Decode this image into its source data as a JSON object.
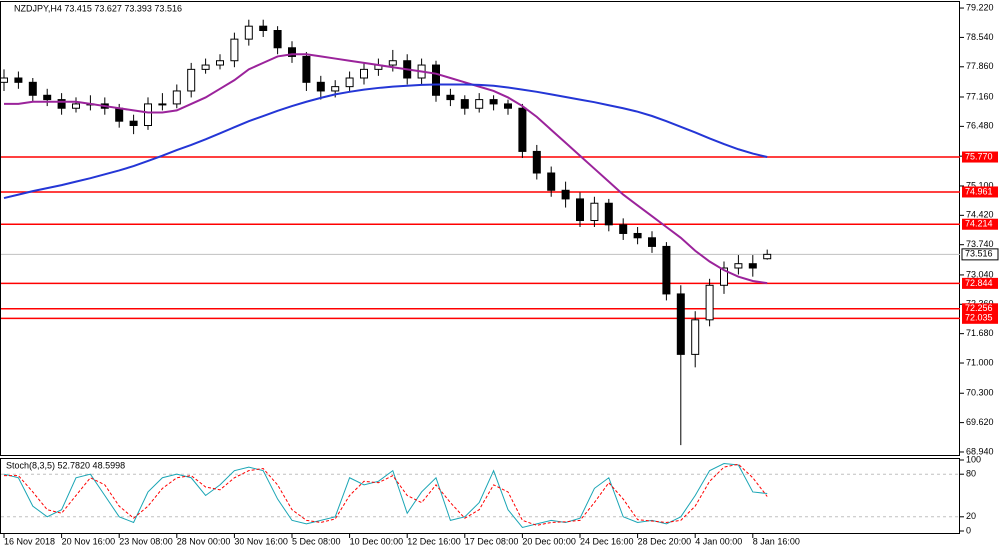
{
  "chart_data": {
    "type": "candlestick",
    "title": "NZDJPY,H4  73.415 73.627 73.393 73.516",
    "categories": [
      "16 Nov 2018",
      null,
      null,
      null,
      "20 Nov 16:00",
      null,
      null,
      null,
      "23 Nov 08:00",
      null,
      null,
      null,
      "28 Nov 00:00",
      null,
      null,
      null,
      "30 Nov 16:00",
      null,
      null,
      null,
      "5 Dec 08:00",
      null,
      null,
      null,
      "10 Dec 00:00",
      null,
      null,
      null,
      "12 Dec 16:00",
      null,
      null,
      null,
      "17 Dec 08:00",
      null,
      null,
      null,
      "20 Dec 00:00",
      null,
      null,
      null,
      "24 Dec 16:00",
      null,
      null,
      null,
      "28 Dec 20:00",
      null,
      null,
      null,
      "4 Jan 00:00",
      null,
      null,
      null,
      "8 Jan 16:00",
      null
    ],
    "open": [
      77.5,
      77.6,
      77.5,
      77.2,
      77.1,
      76.9,
      77.0,
      77.0,
      76.9,
      76.6,
      76.5,
      77.0,
      77.0,
      77.3,
      77.8,
      77.9,
      78.0,
      78.5,
      78.8,
      78.7,
      78.3,
      78.1,
      77.5,
      77.3,
      77.4,
      77.6,
      77.8,
      77.9,
      78.0,
      77.6,
      77.9,
      77.2,
      77.1,
      76.9,
      77.1,
      77.0,
      76.9,
      75.9,
      75.4,
      75.0,
      74.8,
      74.3,
      74.7,
      74.2,
      74.0,
      73.9,
      73.7,
      72.6,
      71.2,
      72.0,
      72.8,
      73.2,
      73.3,
      73.415
    ],
    "high": [
      77.8,
      77.75,
      77.6,
      77.35,
      77.25,
      77.15,
      77.2,
      77.15,
      77.0,
      76.75,
      77.15,
      77.25,
      77.45,
      77.95,
      78.05,
      78.15,
      78.65,
      78.95,
      78.95,
      78.8,
      78.45,
      78.2,
      77.65,
      77.55,
      77.75,
      77.95,
      78.05,
      78.25,
      78.15,
      78.05,
      78.0,
      77.35,
      77.2,
      77.25,
      77.2,
      77.1,
      77.0,
      76.05,
      75.55,
      75.2,
      74.95,
      74.85,
      74.8,
      74.35,
      74.15,
      74.05,
      73.8,
      72.8,
      72.2,
      72.95,
      73.35,
      73.5,
      73.5,
      73.627
    ],
    "low": [
      77.3,
      77.35,
      77.05,
      76.95,
      76.75,
      76.8,
      76.85,
      76.75,
      76.45,
      76.3,
      76.4,
      76.85,
      76.9,
      77.15,
      77.7,
      77.8,
      77.85,
      78.35,
      78.55,
      78.15,
      77.95,
      77.3,
      77.1,
      77.15,
      77.3,
      77.45,
      77.65,
      77.75,
      77.45,
      77.45,
      77.05,
      76.95,
      76.75,
      76.8,
      76.85,
      76.75,
      75.75,
      75.25,
      74.85,
      74.6,
      74.15,
      74.15,
      74.05,
      73.85,
      73.75,
      73.55,
      72.45,
      69.1,
      70.9,
      71.85,
      72.6,
      73.05,
      73.0,
      73.393
    ],
    "close": [
      77.6,
      77.5,
      77.2,
      77.1,
      76.9,
      77.0,
      77.0,
      76.9,
      76.6,
      76.5,
      77.0,
      77.0,
      77.3,
      77.8,
      77.9,
      78.0,
      78.5,
      78.8,
      78.7,
      78.3,
      78.1,
      77.5,
      77.3,
      77.4,
      77.6,
      77.8,
      77.9,
      78.0,
      77.6,
      77.9,
      77.2,
      77.1,
      76.9,
      77.1,
      77.0,
      76.9,
      75.9,
      75.4,
      75.0,
      74.8,
      74.3,
      74.7,
      74.2,
      74.0,
      73.9,
      73.7,
      72.6,
      71.2,
      72.0,
      72.8,
      73.2,
      73.3,
      73.2,
      73.516
    ],
    "series": [
      {
        "color": "#9b239b",
        "values": [
          77.0,
          77.0,
          77.05,
          77.05,
          77.05,
          77.05,
          77.0,
          76.95,
          76.9,
          76.85,
          76.8,
          76.8,
          76.85,
          77.0,
          77.15,
          77.35,
          77.55,
          77.8,
          77.95,
          78.1,
          78.15,
          78.15,
          78.1,
          78.05,
          78.0,
          77.95,
          77.9,
          77.85,
          77.8,
          77.75,
          77.7,
          77.6,
          77.5,
          77.4,
          77.3,
          77.15,
          76.95,
          76.7,
          76.4,
          76.1,
          75.8,
          75.5,
          75.2,
          74.9,
          74.65,
          74.4,
          74.15,
          73.9,
          73.6,
          73.35,
          73.15,
          73.0,
          72.9,
          72.85
        ]
      },
      {
        "color": "#2436d6",
        "values": [
          74.82,
          74.9,
          74.98,
          75.05,
          75.12,
          75.2,
          75.28,
          75.37,
          75.46,
          75.56,
          75.68,
          75.8,
          75.93,
          76.05,
          76.18,
          76.32,
          76.46,
          76.6,
          76.72,
          76.84,
          76.95,
          77.05,
          77.14,
          77.22,
          77.28,
          77.33,
          77.37,
          77.4,
          77.42,
          77.44,
          77.45,
          77.45,
          77.45,
          77.44,
          77.42,
          77.38,
          77.33,
          77.28,
          77.22,
          77.16,
          77.1,
          77.04,
          76.97,
          76.9,
          76.82,
          76.72,
          76.6,
          76.47,
          76.34,
          76.2,
          76.07,
          75.95,
          75.85,
          75.77
        ]
      }
    ],
    "ylim": [
      68.87,
      79.36
    ],
    "yticks": [
      {
        "value": 79.22,
        "label": "79.220"
      },
      {
        "value": 78.54,
        "label": "78.540"
      },
      {
        "value": 77.86,
        "label": "77.860"
      },
      {
        "value": 77.16,
        "label": "77.160"
      },
      {
        "value": 76.48,
        "label": "76.480"
      },
      {
        "value": 75.79,
        "label": "75.790"
      },
      {
        "value": 75.1,
        "label": "75.100"
      },
      {
        "value": 74.42,
        "label": "74.420"
      },
      {
        "value": 73.74,
        "label": "73.740"
      },
      {
        "value": 73.04,
        "label": "73.040"
      },
      {
        "value": 72.36,
        "label": "72.360"
      },
      {
        "value": 71.68,
        "label": "71.680"
      },
      {
        "value": 71.0,
        "label": "71.000"
      },
      {
        "value": 70.3,
        "label": "70.300"
      },
      {
        "value": 69.62,
        "label": "69.620"
      },
      {
        "value": 68.94,
        "label": "68.940"
      }
    ],
    "levels": {
      "color": "#ff0000",
      "values": [
        75.77,
        74.961,
        74.214,
        72.844,
        72.256,
        72.035
      ],
      "value_labels": [
        "75.770",
        "74.961",
        "74.214",
        "72.844",
        "72.256",
        "72.035"
      ]
    },
    "last": {
      "value": 73.516,
      "label": "73.516",
      "color": "#c0c0c0"
    },
    "indicator": {
      "type": "line",
      "title": "Stoch(8,3,5) 52.7820 48.5998",
      "ylim": [
        0,
        100
      ],
      "yticks": [
        100,
        80,
        20,
        0
      ],
      "levels": [
        80,
        20
      ],
      "series": [
        {
          "color": "#1aa5b5",
          "values": [
            80,
            75,
            35,
            20,
            30,
            75,
            80,
            50,
            20,
            12,
            55,
            75,
            80,
            75,
            50,
            65,
            85,
            90,
            85,
            45,
            15,
            10,
            15,
            20,
            75,
            65,
            70,
            85,
            25,
            55,
            75,
            15,
            20,
            40,
            85,
            30,
            5,
            10,
            15,
            12,
            18,
            60,
            75,
            20,
            12,
            15,
            10,
            20,
            50,
            85,
            95,
            93,
            55,
            52.782
          ]
        },
        {
          "color": "#ff0000",
          "dashed": true,
          "values": [
            78,
            78,
            55,
            30,
            25,
            50,
            75,
            65,
            35,
            18,
            35,
            60,
            75,
            78,
            62,
            58,
            75,
            85,
            88,
            65,
            30,
            15,
            12,
            17,
            50,
            70,
            68,
            78,
            50,
            40,
            65,
            40,
            18,
            30,
            65,
            55,
            15,
            8,
            12,
            13,
            15,
            40,
            68,
            45,
            16,
            14,
            12,
            15,
            35,
            70,
            90,
            94,
            75,
            48.5998
          ]
        }
      ]
    }
  }
}
